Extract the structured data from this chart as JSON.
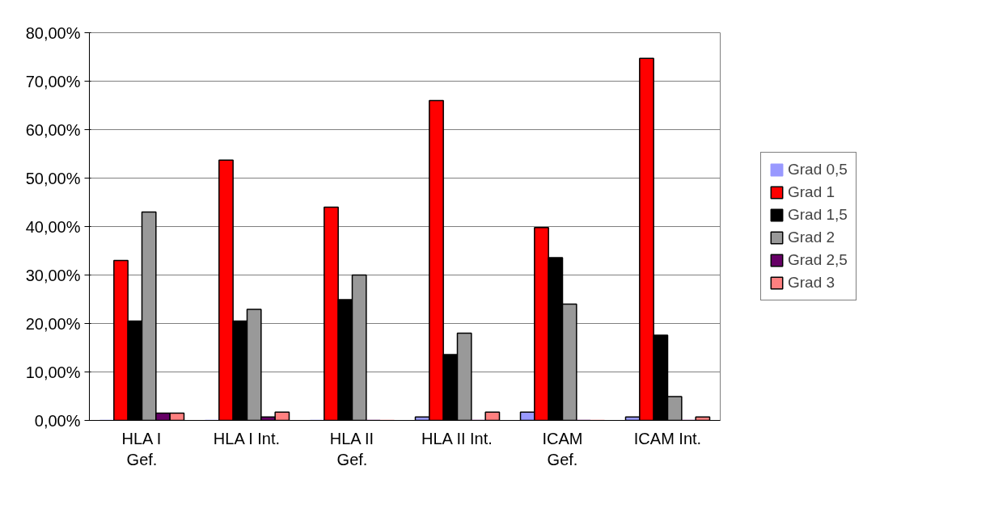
{
  "chart_data": {
    "type": "bar",
    "categories": [
      "HLA I\nGef.",
      "HLA I Int.",
      "HLA II\nGef.",
      "HLA II Int.",
      "ICAM\nGef.",
      "ICAM Int."
    ],
    "series": [
      {
        "name": "Grad 0,5",
        "color": "#9999ff",
        "values": [
          0,
          0,
          0,
          0.7,
          1.7,
          0.7
        ]
      },
      {
        "name": "Grad 1",
        "color": "#ff0000",
        "values": [
          33,
          53.7,
          44,
          66,
          39.8,
          74.7
        ]
      },
      {
        "name": "Grad 1,5",
        "color": "#000000",
        "values": [
          20.5,
          20.5,
          24.9,
          13.6,
          33.6,
          17.6
        ]
      },
      {
        "name": "Grad 2",
        "color": "#999999",
        "values": [
          43,
          22.9,
          30,
          18,
          24,
          4.9
        ]
      },
      {
        "name": "Grad 2,5",
        "color": "#660066",
        "values": [
          1.5,
          0.7,
          0,
          0,
          0,
          0
        ]
      },
      {
        "name": "Grad 3",
        "color": "#ff8080",
        "values": [
          1.5,
          1.7,
          0,
          1.7,
          0,
          0.7
        ]
      }
    ],
    "ylim": [
      0,
      80
    ],
    "yticks": [
      {
        "value": 0,
        "label": "0,00%"
      },
      {
        "value": 10,
        "label": "10,00%"
      },
      {
        "value": 20,
        "label": "20,00%"
      },
      {
        "value": 30,
        "label": "30,00%"
      },
      {
        "value": 40,
        "label": "40,00%"
      },
      {
        "value": 50,
        "label": "50,00%"
      },
      {
        "value": 60,
        "label": "60,00%"
      },
      {
        "value": 70,
        "label": "70,00%"
      },
      {
        "value": 80,
        "label": "80,00%"
      }
    ],
    "grid": "y",
    "legend": "right"
  }
}
